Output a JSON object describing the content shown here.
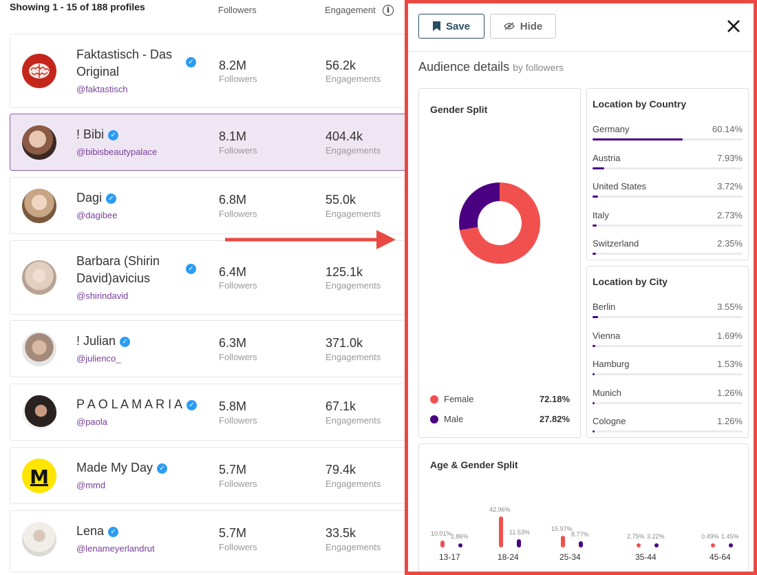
{
  "list": {
    "showing": "Showing 1 - 15 of 188 profiles",
    "followers_header": "Followers",
    "engagement_header": "Engagement",
    "followers_unit": "Followers",
    "engagements_unit": "Engagements",
    "profiles": [
      {
        "name": "Faktastisch - Das Original",
        "handle": "@faktastisch",
        "followers": "8.2M",
        "engagements": "56.2k",
        "verified": true
      },
      {
        "name": "! Bibi",
        "handle": "@bibisbeautypalace",
        "followers": "8.1M",
        "engagements": "404.4k",
        "verified": true
      },
      {
        "name": "Dagi",
        "handle": "@dagibee",
        "followers": "6.8M",
        "engagements": "55.0k",
        "verified": true
      },
      {
        "name": "Barbara (Shirin David)avicius",
        "handle": "@shirindavid",
        "followers": "6.4M",
        "engagements": "125.1k",
        "verified": true
      },
      {
        "name": "! Julian",
        "handle": "@julienco_",
        "followers": "6.3M",
        "engagements": "371.0k",
        "verified": true
      },
      {
        "name": "P A O L A M A R I A",
        "handle": "@paola",
        "followers": "5.8M",
        "engagements": "67.1k",
        "verified": true
      },
      {
        "name": "Made My Day",
        "handle": "@mmd",
        "followers": "5.7M",
        "engagements": "79.4k",
        "verified": true
      },
      {
        "name": "Lena",
        "handle": "@lenameyerlandrut",
        "followers": "5.7M",
        "engagements": "33.5k",
        "verified": true
      }
    ]
  },
  "panel": {
    "save_label": "Save",
    "hide_label": "Hide",
    "title": "Audience details",
    "title_sub": "by followers",
    "gender": {
      "title": "Gender Split",
      "female_label": "Female",
      "female_value": "72.18%",
      "female_fraction": 0.7218,
      "male_label": "Male",
      "male_value": "27.82%",
      "female_color": "#f0514e",
      "male_color": "#4b0082"
    },
    "country": {
      "title": "Location by Country",
      "items": [
        {
          "name": "Germany",
          "value": "60.14%",
          "pct": 60.14
        },
        {
          "name": "Austria",
          "value": "7.93%",
          "pct": 7.93
        },
        {
          "name": "United States",
          "value": "3.72%",
          "pct": 3.72
        },
        {
          "name": "Italy",
          "value": "2.73%",
          "pct": 2.73
        },
        {
          "name": "Switzerland",
          "value": "2.35%",
          "pct": 2.35
        }
      ]
    },
    "city": {
      "title": "Location by City",
      "items": [
        {
          "name": "Berlin",
          "value": "3.55%",
          "pct": 3.55
        },
        {
          "name": "Vienna",
          "value": "1.69%",
          "pct": 1.69
        },
        {
          "name": "Hamburg",
          "value": "1.53%",
          "pct": 1.53
        },
        {
          "name": "Munich",
          "value": "1.26%",
          "pct": 1.26
        },
        {
          "name": "Cologne",
          "value": "1.26%",
          "pct": 1.26
        }
      ]
    },
    "age": {
      "title": "Age & Gender Split",
      "groups": [
        {
          "label": "13-17",
          "female": "10.01%",
          "female_pct": 10.01,
          "male": "2.86%",
          "male_pct": 2.86
        },
        {
          "label": "18-24",
          "female": "42.96%",
          "female_pct": 42.96,
          "male": "11.53%",
          "male_pct": 11.53
        },
        {
          "label": "25-34",
          "female": "15.97%",
          "female_pct": 15.97,
          "male": "8.77%",
          "male_pct": 8.77
        },
        {
          "label": "35-44",
          "female": "2.75%",
          "female_pct": 2.75,
          "male": "3.22%",
          "male_pct": 3.22
        },
        {
          "label": "45-64",
          "female": "0.49%",
          "female_pct": 0.49,
          "male": "1.45%",
          "male_pct": 1.45
        }
      ]
    }
  },
  "colors": {
    "accent": "#e84a43",
    "purple": "#4b0082",
    "coral": "#f0514e",
    "verified": "#2b9cf2",
    "handle": "#7a3f9a"
  }
}
